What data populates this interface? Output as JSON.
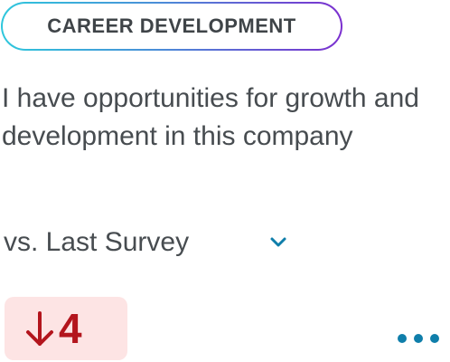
{
  "category": {
    "label": "CAREER DEVELOPMENT"
  },
  "question": {
    "text": "I have opportunities for growth and development in this company"
  },
  "comparison": {
    "selected": "vs. Last Survey",
    "icon": "chevron-down-icon"
  },
  "delta": {
    "direction": "down",
    "value": "4",
    "icon": "arrow-down-icon"
  },
  "menu": {
    "icon": "more-horizontal-icon"
  },
  "colors": {
    "accent": "#0f7eaa",
    "negative": "#b3151d",
    "negative_bg": "#fde4e4",
    "text": "#474c50"
  }
}
